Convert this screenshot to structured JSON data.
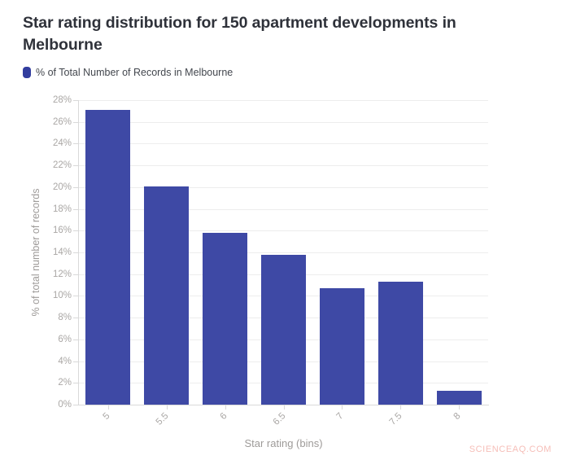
{
  "header": {
    "title": "Star rating distribution for 150 apartment developments in Melbourne"
  },
  "legend": {
    "label": "% of Total Number of Records in Melbourne",
    "swatch_color": "#323d9e"
  },
  "chart_data": {
    "type": "bar",
    "categories": [
      "5",
      "5.5",
      "6",
      "6.5",
      "7",
      "7.5",
      "8"
    ],
    "values": [
      27.1,
      20.1,
      15.8,
      13.8,
      10.7,
      11.3,
      1.3
    ],
    "title": "Star rating distribution for 150 apartment developments in Melbourne",
    "xlabel": "Star rating (bins)",
    "ylabel": "% of total number of records",
    "ylim": [
      0,
      28
    ],
    "ytick_step": 2,
    "ytick_suffix": "%",
    "grid": true,
    "legend_position": "top-left",
    "bar_color": "#3e49a5"
  },
  "watermark": {
    "text": "SCIENCEAQ.COM"
  }
}
